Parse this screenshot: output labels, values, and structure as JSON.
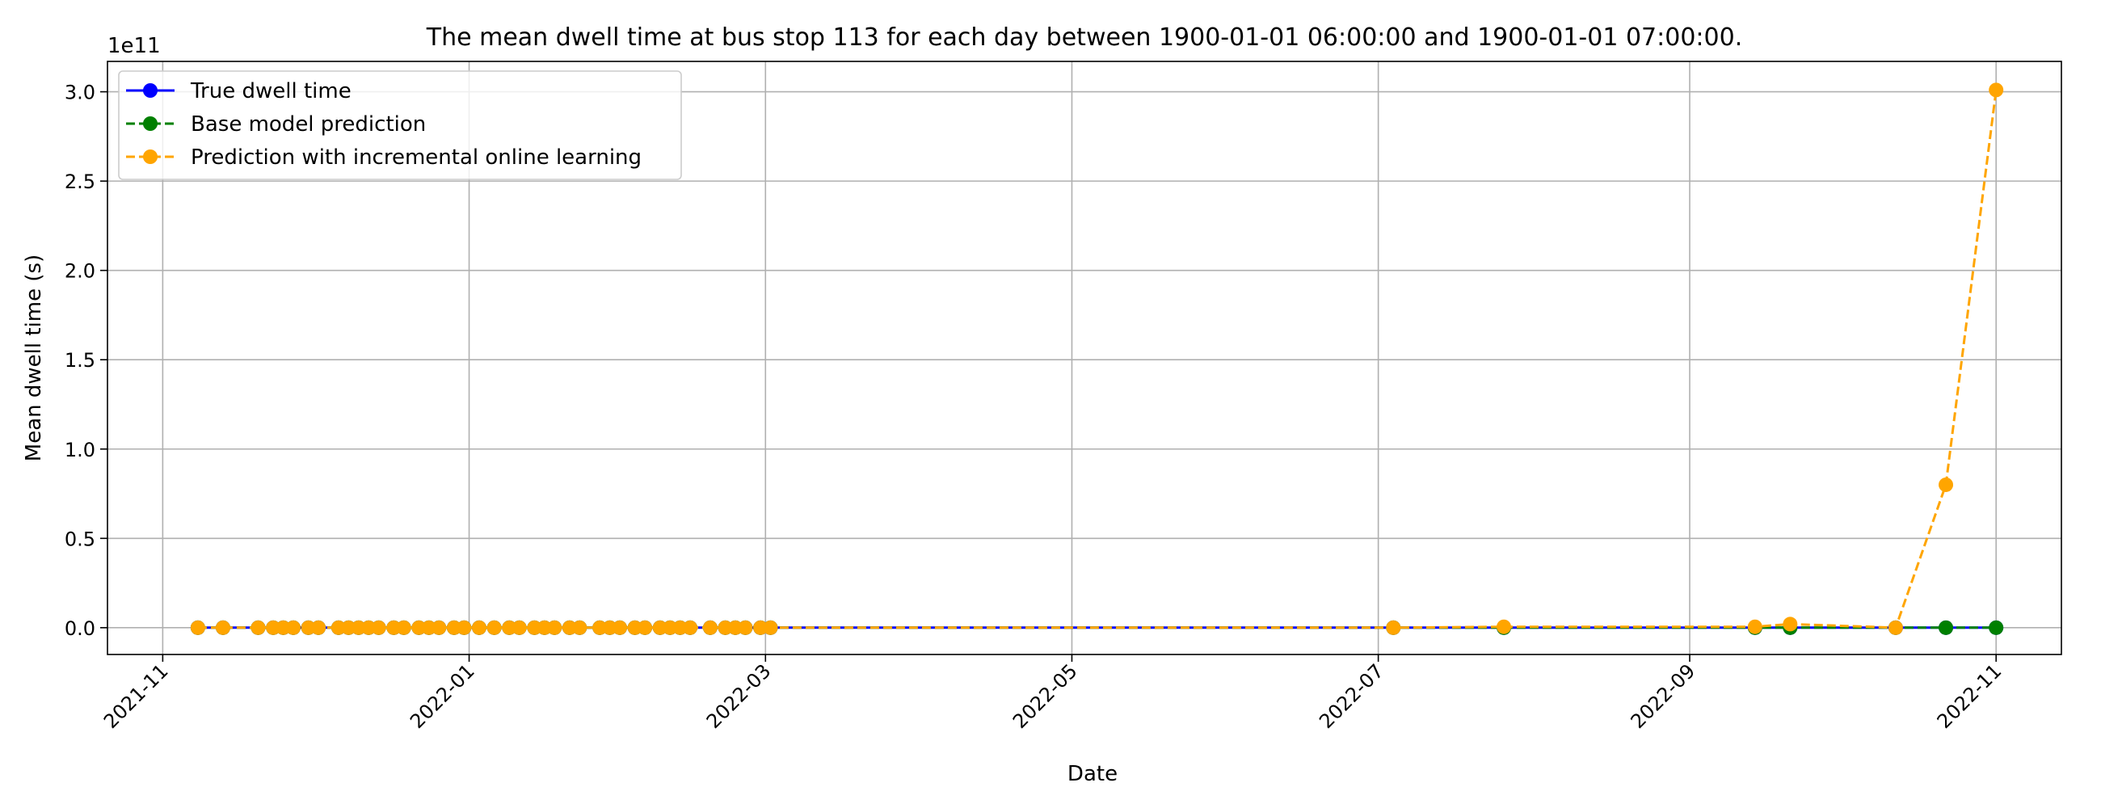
{
  "chart_data": {
    "type": "line",
    "title": "The mean dwell time at bus stop 113 for each day between 1900-01-01 06:00:00 and 1900-01-01 07:00:00.",
    "xlabel": "Date",
    "ylabel": "Mean dwell time (s)",
    "y_offset_label": "1e11",
    "y_scale_factor": 100000000000.0,
    "xlim": [
      "2021-10-21",
      "2022-11-14"
    ],
    "ylim": [
      -0.15,
      3.17
    ],
    "x_ticks": [
      "2021-11",
      "2022-01",
      "2022-03",
      "2022-05",
      "2022-07",
      "2022-09",
      "2022-11"
    ],
    "x_tick_dates": [
      "2021-11-01",
      "2022-01-01",
      "2022-03-01",
      "2022-05-01",
      "2022-07-01",
      "2022-09-01",
      "2022-11-01"
    ],
    "y_ticks": [
      0.0,
      0.5,
      1.0,
      1.5,
      2.0,
      2.5,
      3.0
    ],
    "y_tick_labels": [
      "0.0",
      "0.5",
      "1.0",
      "1.5",
      "2.0",
      "2.5",
      "3.0"
    ],
    "grid": true,
    "legend_position": "top-left",
    "x": [
      "2021-11-08",
      "2021-11-13",
      "2021-11-20",
      "2021-11-23",
      "2021-11-25",
      "2021-11-27",
      "2021-11-30",
      "2021-12-02",
      "2021-12-06",
      "2021-12-08",
      "2021-12-10",
      "2021-12-12",
      "2021-12-14",
      "2021-12-17",
      "2021-12-19",
      "2021-12-22",
      "2021-12-24",
      "2021-12-26",
      "2021-12-29",
      "2021-12-31",
      "2022-01-03",
      "2022-01-06",
      "2022-01-09",
      "2022-01-11",
      "2022-01-14",
      "2022-01-16",
      "2022-01-18",
      "2022-01-21",
      "2022-01-23",
      "2022-01-27",
      "2022-01-29",
      "2022-01-31",
      "2022-02-03",
      "2022-02-05",
      "2022-02-08",
      "2022-02-10",
      "2022-02-12",
      "2022-02-14",
      "2022-02-18",
      "2022-02-21",
      "2022-02-23",
      "2022-02-25",
      "2022-02-28",
      "2022-03-02",
      "2022-07-04",
      "2022-07-26",
      "2022-09-14",
      "2022-09-21",
      "2022-10-12",
      "2022-10-22",
      "2022-11-01"
    ],
    "series": [
      {
        "name": "True dwell time",
        "color": "#0000ff",
        "linestyle": "solid",
        "values": [
          0,
          0,
          0,
          0,
          0,
          0,
          0,
          0,
          0,
          0,
          0,
          0,
          0,
          0,
          0,
          0,
          0,
          0,
          0,
          0,
          0,
          0,
          0,
          0,
          0,
          0,
          0,
          0,
          0,
          0,
          0,
          0,
          0,
          0,
          0,
          0,
          0,
          0,
          0,
          0,
          0,
          0,
          0,
          0,
          0,
          0,
          0,
          0,
          0,
          0,
          0
        ]
      },
      {
        "name": "Base model prediction",
        "color": "#008000",
        "linestyle": "dashed",
        "values": [
          0,
          0,
          0,
          0,
          0,
          0,
          0,
          0,
          0,
          0,
          0,
          0,
          0,
          0,
          0,
          0,
          0,
          0,
          0,
          0,
          0,
          0,
          0,
          0,
          0,
          0,
          0,
          0,
          0,
          0,
          0,
          0,
          0,
          0,
          0,
          0,
          0,
          0,
          0,
          0,
          0,
          0,
          0,
          0,
          0,
          0,
          0,
          0,
          0,
          0,
          0
        ]
      },
      {
        "name": "Prediction with incremental online learning",
        "color": "#ffa500",
        "linestyle": "dashed",
        "values": [
          0,
          0,
          0,
          0,
          0,
          0,
          0,
          0,
          0,
          0,
          0,
          0,
          0,
          0,
          0,
          0,
          0,
          0,
          0,
          0,
          0,
          0,
          0,
          0,
          0,
          0,
          0,
          0,
          0,
          0,
          0,
          0,
          0,
          0,
          0,
          0,
          0,
          0,
          0,
          0,
          0,
          0,
          0,
          0,
          0,
          0.005,
          0.005,
          0.02,
          0,
          0.8,
          3.01
        ]
      }
    ]
  }
}
